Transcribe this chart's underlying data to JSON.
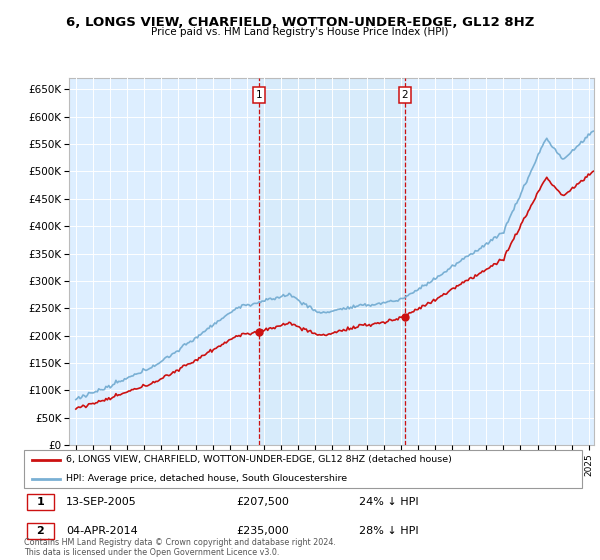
{
  "title": "6, LONGS VIEW, CHARFIELD, WOTTON-UNDER-EDGE, GL12 8HZ",
  "subtitle": "Price paid vs. HM Land Registry's House Price Index (HPI)",
  "ylim": [
    0,
    670000
  ],
  "yticks": [
    0,
    50000,
    100000,
    150000,
    200000,
    250000,
    300000,
    350000,
    400000,
    450000,
    500000,
    550000,
    600000,
    650000
  ],
  "xlim_start": 1994.6,
  "xlim_end": 2025.3,
  "sale1_x": 2005.71,
  "sale1_y": 207500,
  "sale2_x": 2014.25,
  "sale2_y": 235000,
  "hpi_color": "#7ab0d4",
  "price_color": "#cc1111",
  "shade_color": "#d0e8f8",
  "grid_color": "#cccccc",
  "legend_line1": "6, LONGS VIEW, CHARFIELD, WOTTON-UNDER-EDGE, GL12 8HZ (detached house)",
  "legend_line2": "HPI: Average price, detached house, South Gloucestershire",
  "annotation1_date": "13-SEP-2005",
  "annotation1_price": "£207,500",
  "annotation1_hpi": "24% ↓ HPI",
  "annotation2_date": "04-APR-2014",
  "annotation2_price": "£235,000",
  "annotation2_hpi": "28% ↓ HPI",
  "footer": "Contains HM Land Registry data © Crown copyright and database right 2024.\nThis data is licensed under the Open Government Licence v3.0.",
  "plot_bg_color": "#ddeeff"
}
